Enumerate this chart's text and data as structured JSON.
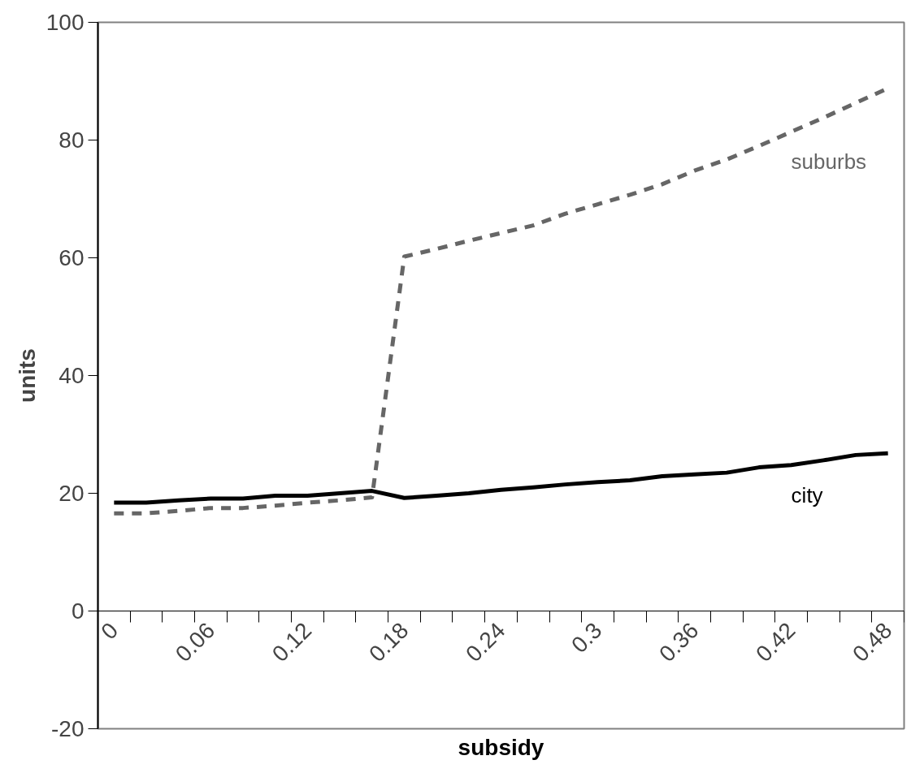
{
  "chart_data": {
    "type": "line",
    "categories": [
      "0",
      null,
      null,
      "0.06",
      null,
      null,
      "0.12",
      null,
      null,
      "0.18",
      null,
      null,
      "0.24",
      null,
      null,
      "0.3",
      null,
      null,
      "0.36",
      null,
      null,
      "0.42",
      null,
      null,
      "0.48"
    ],
    "series": [
      {
        "name": "city",
        "color": "#000000",
        "line_style": "solid",
        "values": [
          18.4,
          18.4,
          18.8,
          19.1,
          19.1,
          19.6,
          19.6,
          20.0,
          20.4,
          19.2,
          19.6,
          20.0,
          20.6,
          21.0,
          21.5,
          21.9,
          22.2,
          22.9,
          23.2,
          23.5,
          24.4,
          24.8,
          25.6,
          26.5,
          26.8
        ]
      },
      {
        "name": "suburbs",
        "color": "#666666",
        "line_style": "dashed",
        "values": [
          16.6,
          16.6,
          17.0,
          17.5,
          17.5,
          17.9,
          18.4,
          18.8,
          19.3,
          60.2,
          61.5,
          62.9,
          64.2,
          65.5,
          67.5,
          69.1,
          70.7,
          72.5,
          74.8,
          76.7,
          79.0,
          81.4,
          83.8,
          86.3,
          88.8
        ]
      }
    ],
    "xlabel": "subsidy",
    "ylabel": "units",
    "ylim": [
      -20,
      100
    ],
    "yticks": [
      -20,
      0,
      20,
      40,
      60,
      80,
      100
    ],
    "grid": false,
    "marker": "none"
  }
}
